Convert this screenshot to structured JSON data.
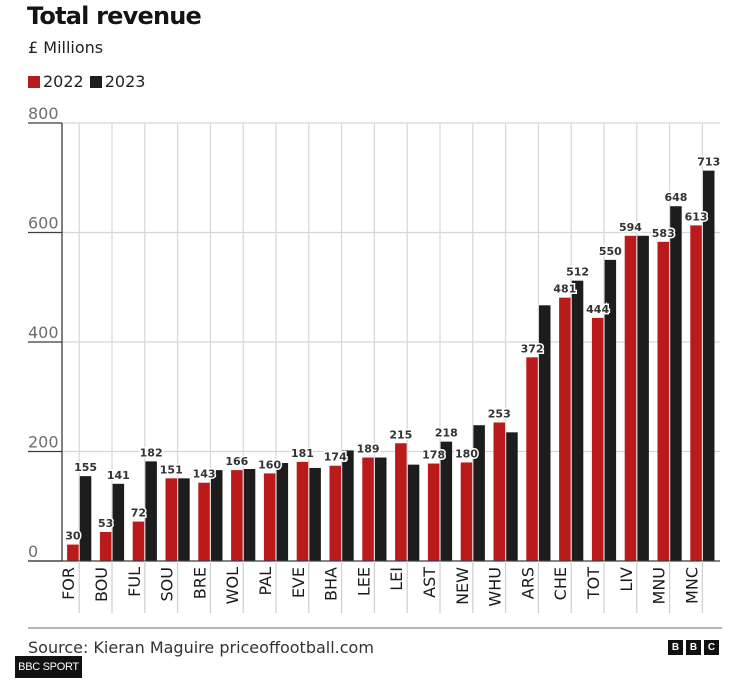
{
  "chart_data": {
    "type": "bar",
    "title": "Total revenue",
    "subtitle": "£ Millions",
    "xlabel": "",
    "ylabel": "",
    "ylim": [
      0,
      800
    ],
    "yticks": [
      "0",
      "200",
      "400",
      "600",
      "800"
    ],
    "grid": true,
    "legend_position": "top-left",
    "categories": [
      "FOR",
      "BOU",
      "FUL",
      "SOU",
      "BRE",
      "WOL",
      "PAL",
      "EVE",
      "BHA",
      "LEE",
      "LEI",
      "AST",
      "NEW",
      "WHU",
      "ARS",
      "CHE",
      "TOT",
      "LIV",
      "MNU",
      "MNC"
    ],
    "series": [
      {
        "name": "2022",
        "color": "#bb1a1a",
        "values": [
          30,
          53,
          72,
          151,
          143,
          166,
          160,
          181,
          174,
          189,
          215,
          178,
          180,
          253,
          372,
          481,
          444,
          594,
          583,
          613
        ],
        "labels": [
          "30",
          "53",
          "72",
          "151",
          "143",
          "166",
          "160",
          "181",
          "174",
          "189",
          "215",
          "178",
          "180",
          "253",
          "372",
          "481",
          "444",
          "594",
          "583",
          "613"
        ]
      },
      {
        "name": "2023",
        "color": "#1d1d1d",
        "values": [
          155,
          141,
          182,
          151,
          166,
          168,
          179,
          170,
          202,
          189,
          176,
          218,
          248,
          235,
          467,
          512,
          550,
          594,
          648,
          713
        ],
        "labels": [
          "155",
          "141",
          "182",
          null,
          null,
          null,
          null,
          null,
          null,
          null,
          null,
          "218",
          null,
          null,
          null,
          "512",
          "550",
          null,
          "648",
          "713"
        ]
      }
    ]
  },
  "footer": {
    "source": "Source: Kieran Maguire priceoffootball.com",
    "logo_letters": [
      "B",
      "B",
      "C"
    ],
    "badge": "BBC SPORT"
  }
}
